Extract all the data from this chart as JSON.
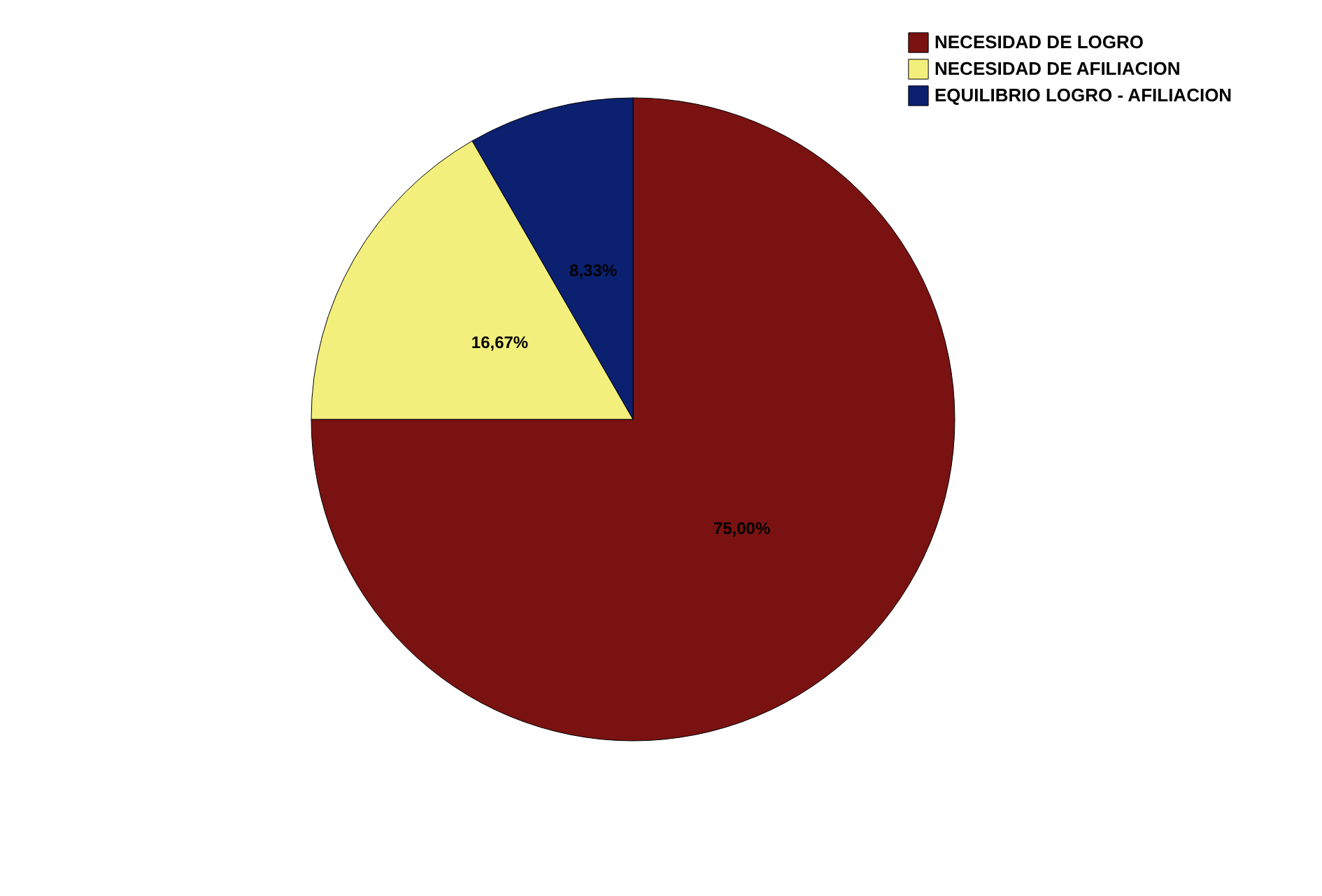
{
  "chart_data": {
    "type": "pie",
    "categories": [
      "NECESIDAD DE LOGRO",
      "NECESIDAD DE AFILIACION",
      "EQUILIBRIO LOGRO - AFILIACION"
    ],
    "values": [
      75.0,
      16.67,
      8.33
    ],
    "colors": [
      "#7a1212",
      "#f3ef7c",
      "#0c2070"
    ],
    "value_labels": [
      "75,00%",
      "16,67%",
      "8,33%"
    ],
    "legend": "top right"
  }
}
